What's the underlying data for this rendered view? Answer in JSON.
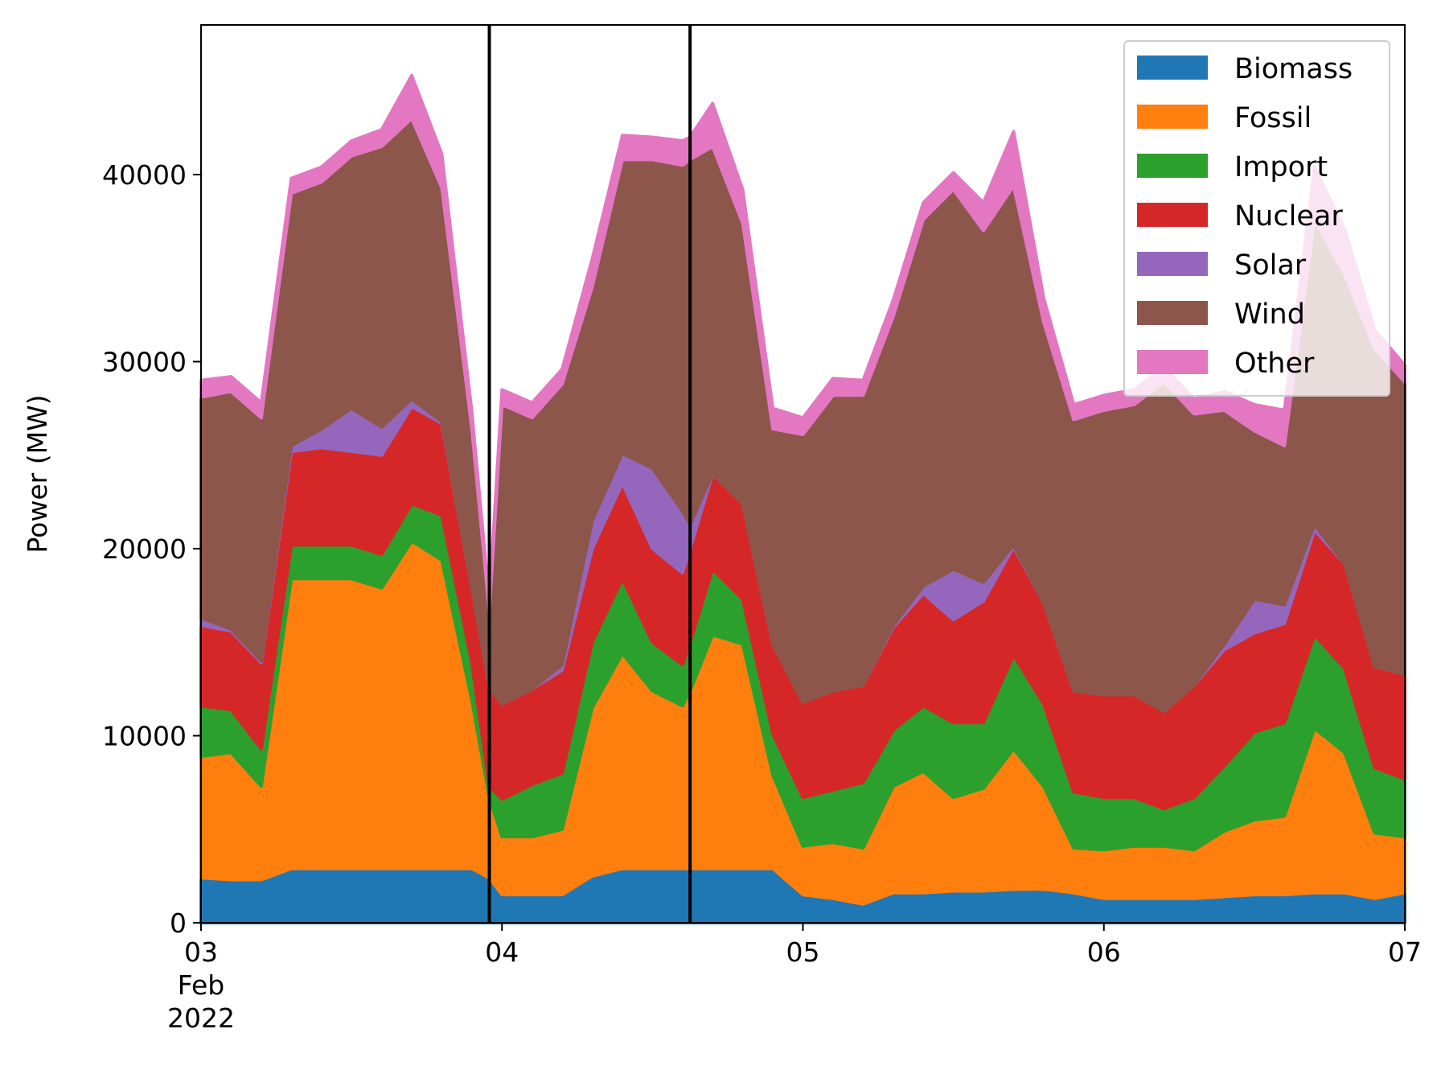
{
  "chart_data": {
    "type": "area",
    "stacked": true,
    "title": "",
    "xlabel": "",
    "ylabel": "Power (MW)",
    "xlim": [
      3,
      7
    ],
    "ylim": [
      0,
      48000
    ],
    "x_unit": "day of February 2022",
    "x_ticks": [
      {
        "value": 3,
        "label": "03",
        "sublabel": [
          "Feb",
          "2022"
        ]
      },
      {
        "value": 4,
        "label": "04"
      },
      {
        "value": 5,
        "label": "05"
      },
      {
        "value": 6,
        "label": "06"
      },
      {
        "value": 7,
        "label": "07"
      }
    ],
    "y_ticks": [
      0,
      10000,
      20000,
      30000,
      40000
    ],
    "legend_position": "top-right",
    "vertical_lines": [
      3.958,
      4.625
    ],
    "grid": false,
    "x": [
      3.0,
      3.1,
      3.2,
      3.3,
      3.4,
      3.5,
      3.6,
      3.7,
      3.8,
      3.9,
      3.958,
      4.0,
      4.1,
      4.2,
      4.3,
      4.4,
      4.5,
      4.6,
      4.625,
      4.7,
      4.8,
      4.9,
      5.0,
      5.1,
      5.2,
      5.3,
      5.4,
      5.5,
      5.6,
      5.7,
      5.8,
      5.9,
      6.0,
      6.1,
      6.2,
      6.3,
      6.4,
      6.5,
      6.6,
      6.7,
      6.8,
      6.9,
      7.0
    ],
    "series": [
      {
        "name": "Biomass",
        "color": "#1f77b4",
        "values": [
          2400,
          2300,
          2300,
          2900,
          2900,
          2900,
          2900,
          2900,
          2900,
          2900,
          2400,
          1500,
          1500,
          1500,
          2500,
          2900,
          2900,
          2900,
          2900,
          2900,
          2900,
          2900,
          1500,
          1300,
          1000,
          1600,
          1600,
          1700,
          1700,
          1800,
          1800,
          1600,
          1300,
          1300,
          1300,
          1300,
          1400,
          1500,
          1500,
          1600,
          1600,
          1300,
          1600
        ]
      },
      {
        "name": "Fossil",
        "color": "#ff7f0e",
        "values": [
          6500,
          6800,
          5000,
          15500,
          15500,
          15500,
          15000,
          17500,
          16500,
          9000,
          4300,
          3100,
          3100,
          3500,
          9000,
          11500,
          9500,
          8700,
          9500,
          12500,
          12000,
          5000,
          2600,
          3000,
          3000,
          5700,
          6500,
          5000,
          5500,
          7500,
          5500,
          2400,
          2600,
          2800,
          2800,
          2600,
          3500,
          4000,
          4200,
          8800,
          7500,
          3500,
          3000
        ]
      },
      {
        "name": "Import",
        "color": "#2ca02c",
        "values": [
          2700,
          2300,
          2000,
          1800,
          1800,
          1800,
          1800,
          2000,
          2400,
          2000,
          600,
          2000,
          2800,
          3000,
          3500,
          4000,
          2600,
          2200,
          2600,
          3500,
          2400,
          2200,
          2600,
          2800,
          3500,
          3000,
          3500,
          4000,
          3500,
          5000,
          4400,
          3000,
          2800,
          2600,
          2000,
          2800,
          3500,
          4700,
          5000,
          5000,
          4500,
          3500,
          3100
        ]
      },
      {
        "name": "Nuclear",
        "color": "#d62728",
        "values": [
          4300,
          4200,
          4600,
          5000,
          5200,
          5000,
          5300,
          5200,
          4900,
          4000,
          5300,
          5100,
          5100,
          5500,
          5000,
          5100,
          5000,
          4900,
          5000,
          5100,
          5100,
          4800,
          5100,
          5300,
          5200,
          5500,
          6000,
          5500,
          6500,
          5800,
          5400,
          5400,
          5500,
          5500,
          5200,
          6000,
          6200,
          5300,
          5300,
          5600,
          5600,
          5400,
          5600
        ]
      },
      {
        "name": "Solar",
        "color": "#9467bd",
        "values": [
          400,
          100,
          100,
          300,
          1000,
          2300,
          1500,
          400,
          100,
          0,
          0,
          0,
          0,
          300,
          1500,
          1600,
          4300,
          3300,
          1300,
          0,
          0,
          0,
          0,
          0,
          0,
          100,
          400,
          2700,
          1000,
          100,
          0,
          0,
          0,
          0,
          0,
          0,
          300,
          1800,
          1000,
          300,
          0,
          0,
          0
        ]
      },
      {
        "name": "Wind",
        "color": "#8c564b",
        "values": [
          11800,
          12700,
          13000,
          13500,
          13200,
          13500,
          15000,
          15000,
          12500,
          8500,
          4000,
          16000,
          14500,
          15000,
          12500,
          15700,
          16500,
          18500,
          19500,
          17500,
          15000,
          11500,
          14300,
          15800,
          15500,
          16500,
          19600,
          20300,
          18800,
          19200,
          15000,
          14500,
          15200,
          15500,
          17600,
          14500,
          12500,
          9000,
          8500,
          16300,
          15500,
          17000,
          15600
        ]
      },
      {
        "name": "Other",
        "color": "#e377c2",
        "values": [
          900,
          800,
          800,
          800,
          800,
          800,
          900,
          2300,
          1800,
          900,
          600,
          800,
          800,
          800,
          1500,
          1300,
          1200,
          1300,
          1200,
          2300,
          1800,
          1100,
          900,
          900,
          800,
          900,
          900,
          900,
          1500,
          2900,
          1300,
          800,
          800,
          800,
          800,
          800,
          1000,
          1400,
          1900,
          2800,
          2400,
          1000,
          900
        ]
      }
    ]
  }
}
